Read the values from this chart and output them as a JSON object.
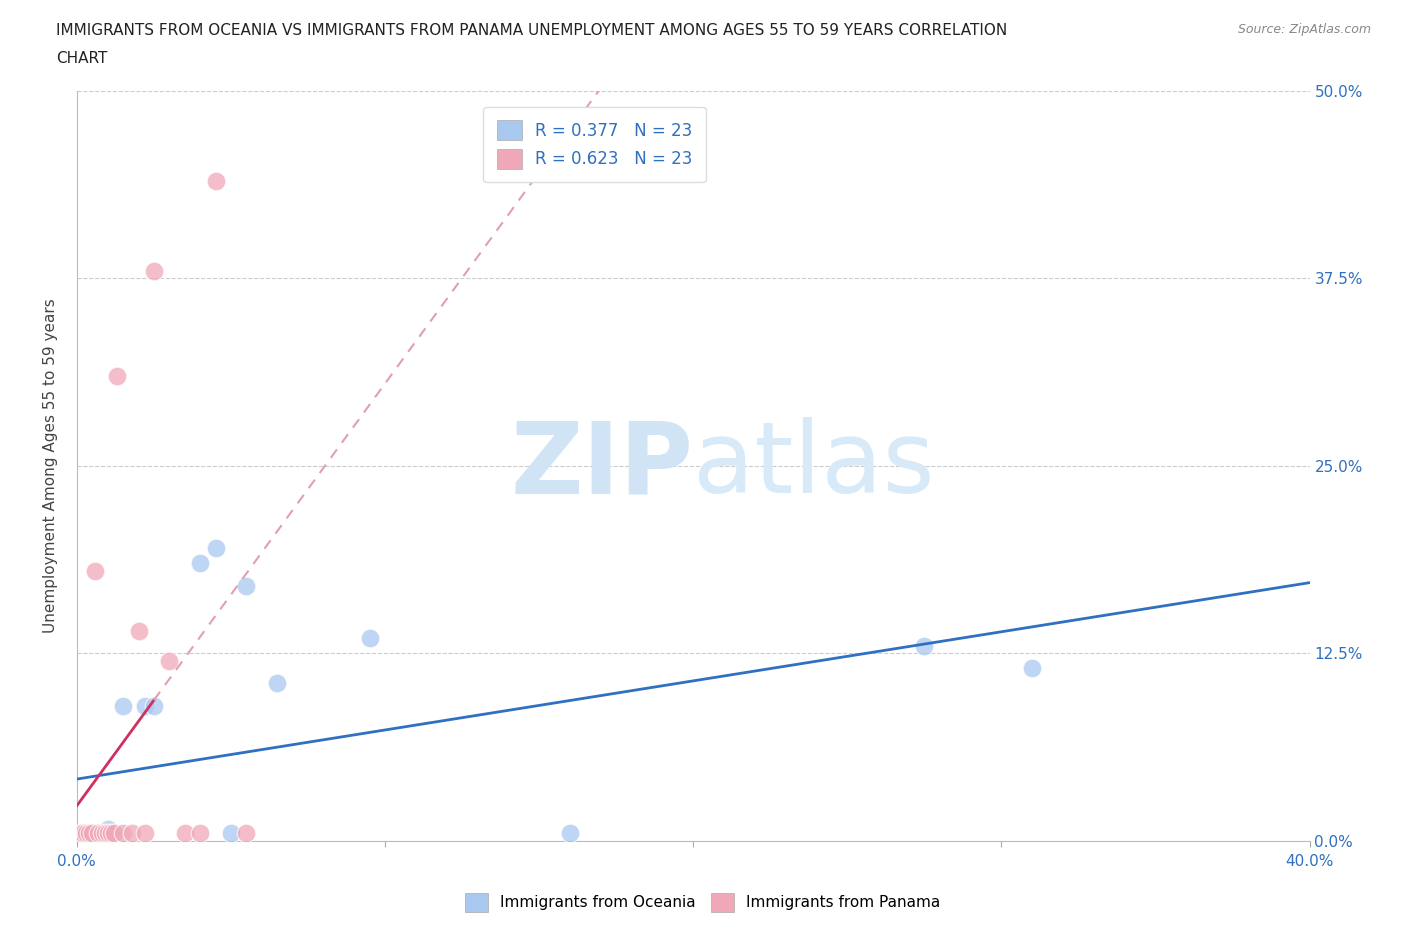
{
  "title_line1": "IMMIGRANTS FROM OCEANIA VS IMMIGRANTS FROM PANAMA UNEMPLOYMENT AMONG AGES 55 TO 59 YEARS CORRELATION",
  "title_line2": "CHART",
  "source": "Source: ZipAtlas.com",
  "ylabel": "Unemployment Among Ages 55 to 59 years",
  "xlim": [
    0.0,
    0.4
  ],
  "ylim": [
    0.0,
    0.5
  ],
  "xticks": [
    0.0,
    0.1,
    0.2,
    0.3,
    0.4
  ],
  "xtick_labels": [
    "0.0%",
    "",
    "",
    "",
    "40.0%"
  ],
  "ytick_labels": [
    "0.0%",
    "12.5%",
    "25.0%",
    "37.5%",
    "50.0%"
  ],
  "yticks": [
    0.0,
    0.125,
    0.25,
    0.375,
    0.5
  ],
  "oceania_color": "#a8c8f0",
  "panama_color": "#f0a8b8",
  "trendline_oceania_color": "#3070c0",
  "trendline_panama_color": "#d03060",
  "trendline_panama_dashed_color": "#e0a0b0",
  "legend_R_oceania": "R = 0.377",
  "legend_N_oceania": "N = 23",
  "legend_R_panama": "R = 0.623",
  "legend_N_panama": "N = 23",
  "watermark_zip": "ZIP",
  "watermark_atlas": "atlas",
  "oceania_x": [
    0.002,
    0.003,
    0.004,
    0.005,
    0.006,
    0.007,
    0.008,
    0.009,
    0.01,
    0.011,
    0.012,
    0.015,
    0.022,
    0.025,
    0.04,
    0.045,
    0.05,
    0.055,
    0.065,
    0.095,
    0.16,
    0.275,
    0.31
  ],
  "oceania_y": [
    0.005,
    0.005,
    0.0,
    0.005,
    0.0,
    0.005,
    0.0,
    0.005,
    0.008,
    0.0,
    0.005,
    0.09,
    0.09,
    0.09,
    0.185,
    0.195,
    0.005,
    0.17,
    0.105,
    0.135,
    0.005,
    0.13,
    0.115
  ],
  "panama_x": [
    0.001,
    0.002,
    0.003,
    0.004,
    0.005,
    0.006,
    0.007,
    0.008,
    0.009,
    0.01,
    0.011,
    0.012,
    0.013,
    0.015,
    0.018,
    0.02,
    0.022,
    0.025,
    0.03,
    0.035,
    0.04,
    0.045,
    0.055
  ],
  "panama_y": [
    0.005,
    0.005,
    0.005,
    0.005,
    0.005,
    0.18,
    0.005,
    0.005,
    0.005,
    0.005,
    0.005,
    0.005,
    0.31,
    0.005,
    0.005,
    0.14,
    0.005,
    0.38,
    0.12,
    0.005,
    0.005,
    0.44,
    0.005
  ]
}
